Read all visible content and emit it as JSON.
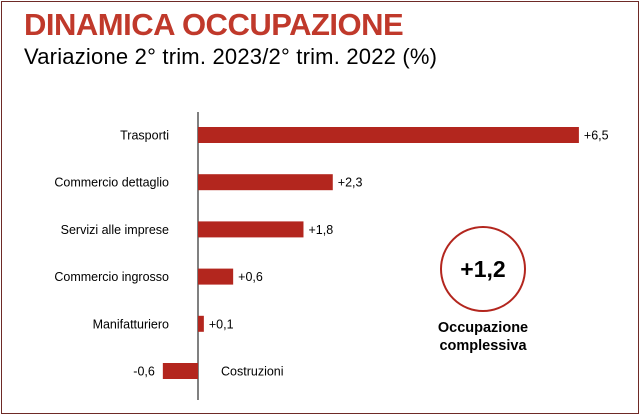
{
  "title": "DINAMICA OCCUPAZIONE",
  "subtitle": "Variazione 2° trim. 2023/2° trim. 2022 (%)",
  "colors": {
    "bar": "#b3261e",
    "title": "#c0392b",
    "axis": "#000000",
    "border": "#6e2a26"
  },
  "chart_data": {
    "type": "bar",
    "orientation": "horizontal",
    "categories": [
      "Trasporti",
      "Commercio dettaglio",
      "Servizi alle imprese",
      "Commercio ingrosso",
      "Manifatturiero",
      "Costruzioni"
    ],
    "values": [
      6.5,
      2.3,
      1.8,
      0.6,
      0.1,
      -0.6
    ],
    "data_labels": [
      "+6,5",
      "+2,3",
      "+1,8",
      "+0,6",
      "+0,1",
      "-0,6"
    ],
    "xlim": [
      -0.6,
      6.5
    ],
    "grid": false,
    "legend": "none"
  },
  "badge": {
    "value": "+1,2",
    "label_line1": "Occupazione",
    "label_line2": "complessiva"
  }
}
